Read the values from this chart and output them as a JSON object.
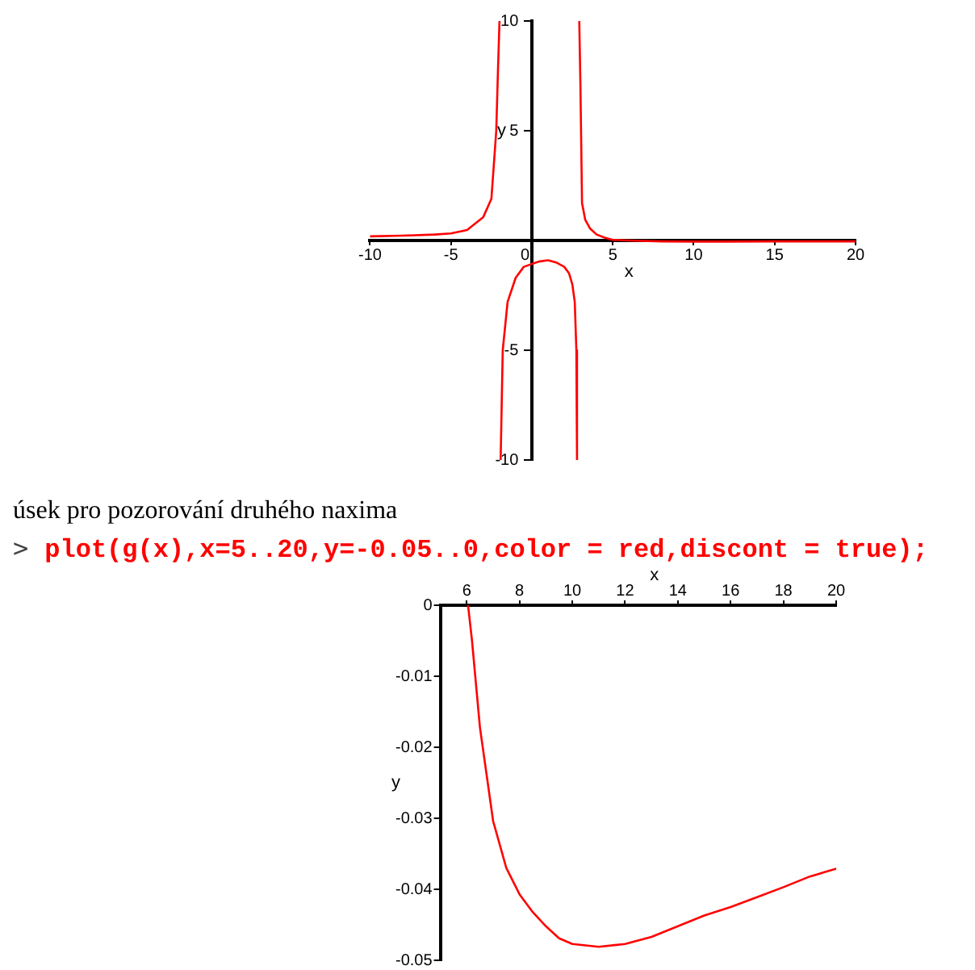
{
  "chart_data": [
    {
      "type": "line",
      "xlabel": "x",
      "ylabel": "y",
      "xlim": [
        -10,
        20
      ],
      "ylim": [
        -10,
        10
      ],
      "xticks": [
        -10,
        -5,
        0,
        5,
        10,
        15,
        20
      ],
      "yticks": [
        -10,
        -5,
        5,
        10
      ],
      "grid": false,
      "legend": false,
      "marker": "none",
      "line_style": "solid",
      "series": [
        {
          "color": "#ff0000",
          "x": [
            -10,
            -8,
            -6,
            -5,
            -4,
            -3,
            -2.5,
            -2.2,
            -2.1,
            -2,
            -1.95,
            -1.93,
            -1.8,
            -1.5,
            -1,
            -0.5,
            0,
            0.5,
            1,
            1.5,
            2,
            2.3,
            2.5,
            2.65,
            2.75,
            2.79,
            2.85,
            2.93,
            3,
            3.1,
            3.3,
            3.6,
            4,
            4.5,
            5,
            6,
            8,
            10,
            12,
            15,
            20
          ],
          "values": [
            0.19,
            0.22,
            0.27,
            0.32,
            0.48,
            1.07,
            1.9,
            5,
            7.6,
            10,
            null,
            -10,
            -5,
            -2.8,
            -1.7,
            -1.2,
            -1.07,
            -0.95,
            -0.9,
            -1.0,
            -1.2,
            -1.5,
            -2.0,
            -2.8,
            -5,
            -10,
            null,
            10,
            7.1,
            1.7,
            0.94,
            0.54,
            0.27,
            0.13,
            0.03,
            0,
            -0.04,
            -0.05,
            -0.05,
            -0.04,
            -0.04
          ]
        }
      ]
    },
    {
      "type": "line",
      "xlabel": "x",
      "ylabel": "y",
      "xlim": [
        5,
        20
      ],
      "ylim": [
        -0.05,
        0
      ],
      "xticks": [
        6,
        8,
        10,
        12,
        14,
        16,
        18,
        20
      ],
      "yticks": [
        -0.05,
        -0.04,
        -0.03,
        -0.02,
        -0.01,
        0
      ],
      "grid": false,
      "legend": false,
      "marker": "none",
      "line_style": "solid",
      "annotations": [
        "úsek pro pozorování druhého naxima",
        ">",
        "plot(g(x),x=5..20,y=-0.05..0,color = red,discont = true);"
      ],
      "series": [
        {
          "color": "#ff0000",
          "x": [
            6.05,
            6.2,
            6.5,
            7,
            7.5,
            8,
            8.5,
            9,
            9.5,
            10,
            11,
            12,
            13,
            14,
            15,
            16,
            17,
            18,
            19,
            20
          ],
          "values": [
            0,
            -0.005,
            -0.0172,
            -0.0304,
            -0.037,
            -0.0407,
            -0.0432,
            -0.0452,
            -0.0469,
            -0.0477,
            -0.0481,
            -0.0477,
            -0.0467,
            -0.0452,
            -0.0437,
            -0.0425,
            -0.0411,
            -0.0397,
            -0.0382,
            -0.0371
          ]
        }
      ]
    }
  ]
}
